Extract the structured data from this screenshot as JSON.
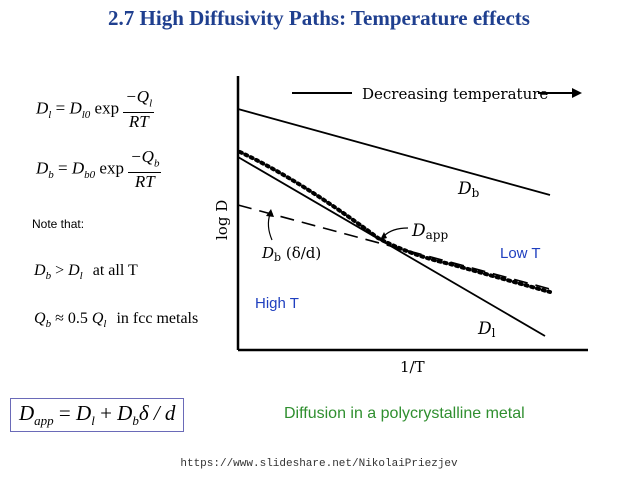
{
  "title": "2.7 High Diffusivity Paths: Temperature effects",
  "equations": {
    "dl": {
      "lhs": "D",
      "lhs_sub": "l",
      "pre": "D",
      "pre_sub": "l0",
      "fn": "exp",
      "num": "−Q",
      "num_sub": "l",
      "den": "RT"
    },
    "db": {
      "lhs": "D",
      "lhs_sub": "b",
      "pre": "D",
      "pre_sub": "b0",
      "fn": "exp",
      "num": "−Q",
      "num_sub": "b",
      "den": "RT"
    }
  },
  "note_label": "Note that:",
  "relations": {
    "r1": {
      "a": "D",
      "a_sub": "b",
      "op": ">",
      "b": "D",
      "b_sub": "l",
      "tail": "at all T"
    },
    "r2": {
      "a": "Q",
      "a_sub": "b",
      "op": "≈ 0.5",
      "b": "Q",
      "b_sub": "l",
      "tail": "in fcc metals"
    }
  },
  "dapp_equation": {
    "lhs": "D",
    "lhs_sub": "app",
    "rhs1": "D",
    "rhs1_sub": "l",
    "plus": "+",
    "rhs2": "D",
    "rhs2_sub": "b",
    "tail": "δ / d"
  },
  "diagram": {
    "x_axis_label": "1/T",
    "y_axis_label": "log D",
    "arrow_label": "Decreasing temperature",
    "db_label": "D",
    "db_label_sub": "b",
    "dl_label": "D",
    "dl_label_sub": "l",
    "dapp_label": "D",
    "dapp_label_sub": "app",
    "dbd_label": "D",
    "dbd_label_sub": "b",
    "dbd_label_tail": " (δ/d)",
    "high_t": "High T",
    "low_t": "Low T",
    "colors": {
      "axes": "#000000",
      "low_t": "#1f3fbf"
    }
  },
  "caption": "Diffusion in a polycrystalline metal",
  "caption_color": "#2f8f2f",
  "footer": "https://www.slideshare.net/NikolaiPriezjev"
}
